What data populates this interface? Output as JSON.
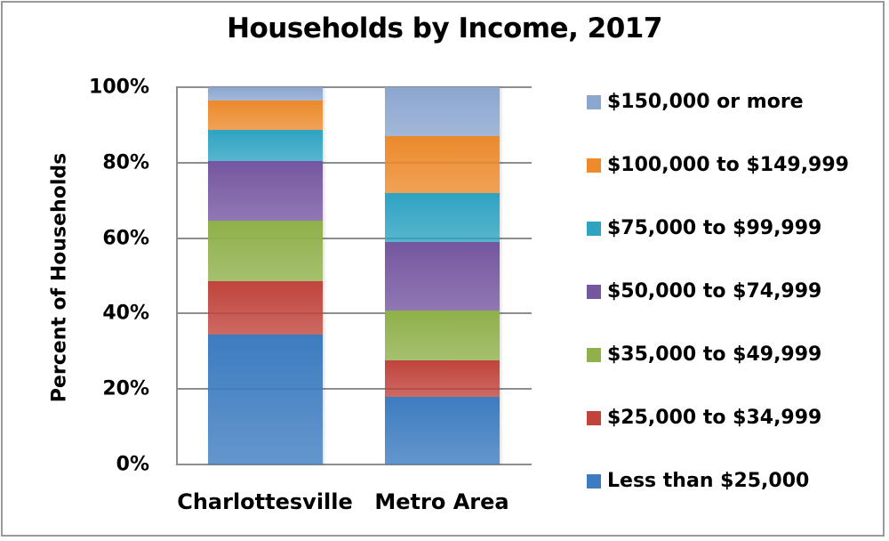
{
  "chart_data": {
    "type": "bar",
    "stacked": true,
    "percent_stacked": true,
    "title": "Households by Income, 2017",
    "xlabel": "",
    "ylabel": "Percent of Households",
    "ylim": [
      0,
      100
    ],
    "yticks": [
      "0%",
      "20%",
      "40%",
      "60%",
      "80%",
      "100%"
    ],
    "grid": true,
    "legend_position": "right",
    "categories": [
      "Charlottesville",
      "Metro Area"
    ],
    "series": [
      {
        "name": "Less than $25,000",
        "color": "#3d7cc0",
        "values": [
          34.3,
          18.0
        ]
      },
      {
        "name": "$25,000 to $34,999",
        "color": "#c0443c",
        "values": [
          14.1,
          9.7
        ]
      },
      {
        "name": "$35,000 to $49,999",
        "color": "#8fb04a",
        "values": [
          16.1,
          13.0
        ]
      },
      {
        "name": "$50,000 to $74,999",
        "color": "#7556a0",
        "values": [
          15.8,
          18.2
        ]
      },
      {
        "name": "$75,000 to $99,999",
        "color": "#2ea3c2",
        "values": [
          8.3,
          13.0
        ]
      },
      {
        "name": "$100,000 to $149,999",
        "color": "#ec8a2c",
        "values": [
          7.8,
          15.1
        ]
      },
      {
        "name": "$150,000 or more",
        "color": "#8ba6cf",
        "values": [
          3.4,
          13.0
        ]
      }
    ]
  },
  "legend_order_top_to_bottom": [
    "$150,000 or more",
    "$100,000 to $149,999",
    "$75,000 to $99,999",
    "$50,000 to $74,999",
    "$35,000 to $49,999",
    "$25,000 to $34,999",
    "Less than $25,000"
  ]
}
